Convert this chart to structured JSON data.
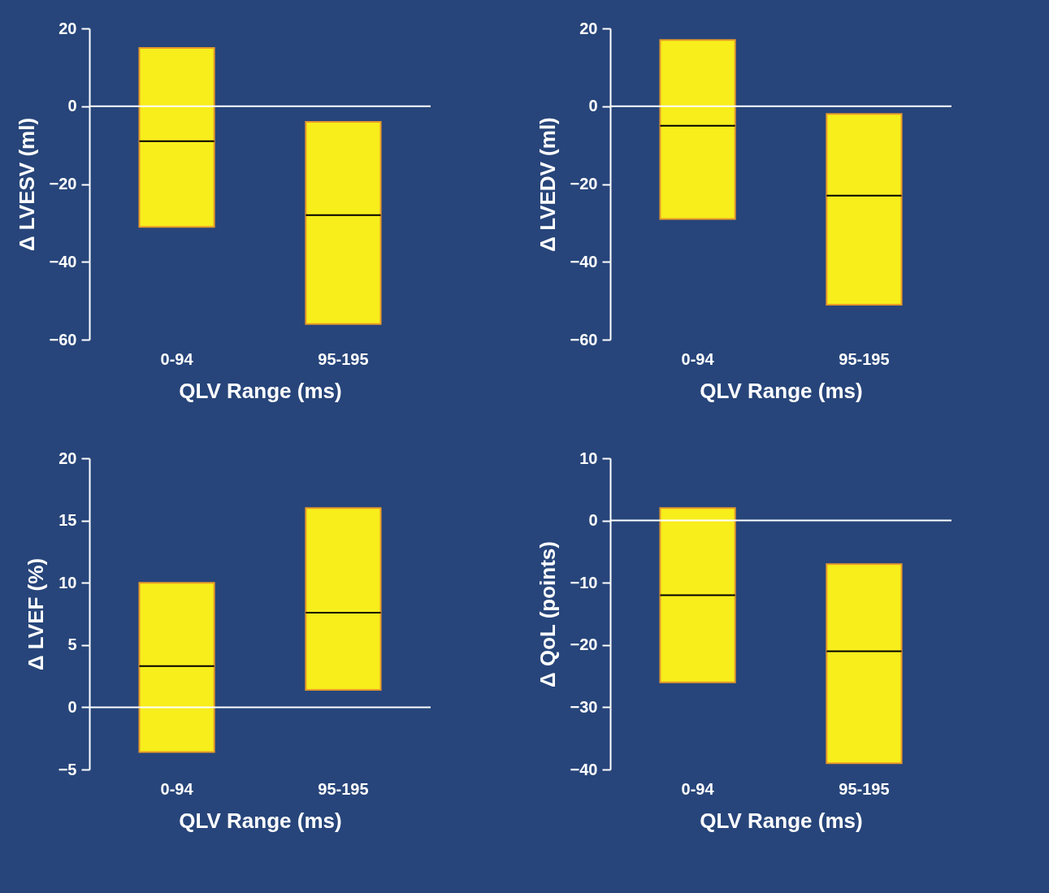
{
  "chart_data": [
    {
      "type": "box",
      "categories": [
        "0-94",
        "95-195"
      ],
      "xlabel": "QLV Range (ms)",
      "ylabel": "Δ LVESV (ml)",
      "ylim": [
        -60,
        20
      ],
      "yticks": [
        -60,
        -40,
        -20,
        0,
        20
      ],
      "color": "#f7ee1c",
      "boxes": [
        {
          "low": -31,
          "q1": -31,
          "median": -9,
          "q3": 15,
          "high": 15
        },
        {
          "low": -56,
          "q1": -56,
          "median": -28,
          "q3": -4,
          "high": -4
        }
      ],
      "ref_lines": [
        {
          "axis": "y",
          "value": 0,
          "color": "#ffffff"
        }
      ]
    },
    {
      "type": "box",
      "categories": [
        "0-94",
        "95-195"
      ],
      "xlabel": "QLV Range (ms)",
      "ylabel": "Δ LVEDV (ml)",
      "ylim": [
        -60,
        20
      ],
      "yticks": [
        -60,
        -40,
        -20,
        0,
        20
      ],
      "color": "#f7ee1c",
      "boxes": [
        {
          "low": -29,
          "q1": -29,
          "median": -5,
          "q3": 17,
          "high": 17
        },
        {
          "low": -51,
          "q1": -51,
          "median": -23,
          "q3": -2,
          "high": -2
        }
      ],
      "ref_lines": [
        {
          "axis": "y",
          "value": 0,
          "color": "#ffffff"
        }
      ]
    },
    {
      "type": "box",
      "categories": [
        "0-94",
        "95-195"
      ],
      "xlabel": "QLV Range (ms)",
      "ylabel": "Δ LVEF (%)",
      "ylim": [
        -5,
        20
      ],
      "yticks": [
        -5,
        0,
        5,
        10,
        15,
        20
      ],
      "color": "#f7ee1c",
      "boxes": [
        {
          "low": -3.6,
          "q1": -3.6,
          "median": 3.3,
          "q3": 10,
          "high": 10
        },
        {
          "low": 1.4,
          "q1": 1.4,
          "median": 7.6,
          "q3": 16,
          "high": 16
        }
      ],
      "ref_lines": [
        {
          "axis": "y",
          "value": 0,
          "color": "#ffffff"
        }
      ]
    },
    {
      "type": "box",
      "categories": [
        "0-94",
        "95-195"
      ],
      "xlabel": "QLV Range (ms)",
      "ylabel": "Δ QoL (points)",
      "ylim": [
        -40,
        10
      ],
      "yticks": [
        -40,
        -30,
        -20,
        -10,
        0,
        10
      ],
      "color": "#f7ee1c",
      "boxes": [
        {
          "low": -26,
          "q1": -26,
          "median": -12,
          "q3": 2,
          "high": 2
        },
        {
          "low": -39,
          "q1": -39,
          "median": -21,
          "q3": -7,
          "high": -7
        }
      ],
      "ref_lines": [
        {
          "axis": "y",
          "value": 0,
          "color": "#ffffff"
        }
      ]
    }
  ]
}
